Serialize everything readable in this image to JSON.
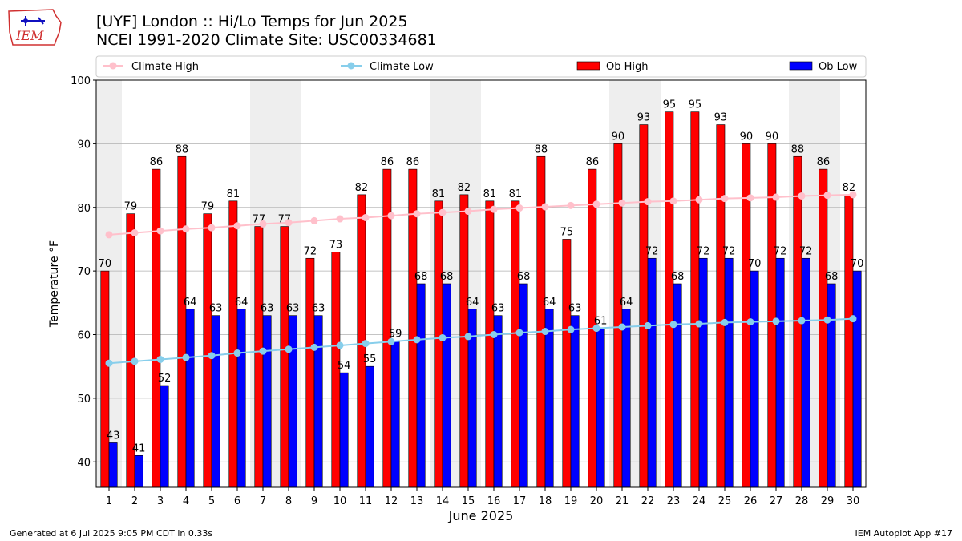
{
  "title_line1": "[UYF] London :: Hi/Lo Temps for Jun 2025",
  "title_line2": "NCEI 1991-2020 Climate Site: USC00334681",
  "logo_text": "IEM",
  "footer_left": "Generated at 6 Jul 2025 9:05 PM CDT in 0.33s",
  "footer_right": "IEM Autoplot App #17",
  "colors": {
    "ob_high": "#ff0000",
    "ob_low": "#0000ff",
    "climate_high": "#ffc0cb",
    "climate_low": "#87ceeb",
    "weekend_band": "#eeeeee",
    "grid": "#b0b0b0"
  },
  "chart_data": {
    "type": "bar",
    "xlabel": "June 2025",
    "ylabel": "Temperature °F",
    "ylim": [
      36,
      100
    ],
    "yticks": [
      40,
      50,
      60,
      70,
      80,
      90,
      100
    ],
    "grid": "horizontal",
    "legend_position": "top",
    "categories": [
      "1",
      "2",
      "3",
      "4",
      "5",
      "6",
      "7",
      "8",
      "9",
      "10",
      "11",
      "12",
      "13",
      "14",
      "15",
      "16",
      "17",
      "18",
      "19",
      "20",
      "21",
      "22",
      "23",
      "24",
      "25",
      "26",
      "27",
      "28",
      "29",
      "30"
    ],
    "weekend_days": [
      1,
      7,
      8,
      14,
      15,
      21,
      22,
      28,
      29
    ],
    "series": [
      {
        "name": "Ob High",
        "kind": "bar",
        "values": [
          70,
          79,
          86,
          88,
          79,
          81,
          77,
          77,
          72,
          73,
          82,
          86,
          86,
          81,
          82,
          81,
          81,
          88,
          75,
          86,
          90,
          93,
          95,
          95,
          93,
          90,
          90,
          88,
          86,
          82
        ]
      },
      {
        "name": "Ob Low",
        "kind": "bar",
        "values": [
          43,
          41,
          52,
          64,
          63,
          64,
          63,
          63,
          63,
          54,
          55,
          59,
          68,
          68,
          64,
          63,
          68,
          64,
          63,
          61,
          64,
          72,
          68,
          72,
          72,
          70,
          72,
          72,
          68,
          70
        ]
      },
      {
        "name": "Climate High",
        "kind": "line",
        "values": [
          75.7,
          76.0,
          76.3,
          76.6,
          76.8,
          77.1,
          77.4,
          77.6,
          77.9,
          78.2,
          78.4,
          78.7,
          79.0,
          79.2,
          79.4,
          79.7,
          79.9,
          80.1,
          80.3,
          80.5,
          80.7,
          80.9,
          81.0,
          81.2,
          81.4,
          81.5,
          81.6,
          81.8,
          81.9,
          82.0
        ]
      },
      {
        "name": "Climate Low",
        "kind": "line",
        "values": [
          55.5,
          55.8,
          56.1,
          56.4,
          56.7,
          57.1,
          57.4,
          57.7,
          58.0,
          58.3,
          58.6,
          58.9,
          59.2,
          59.5,
          59.7,
          60.0,
          60.3,
          60.5,
          60.8,
          61.0,
          61.2,
          61.4,
          61.6,
          61.7,
          61.9,
          62.0,
          62.1,
          62.2,
          62.3,
          62.5
        ]
      }
    ],
    "legend": [
      "Climate High",
      "Climate Low",
      "Ob High",
      "Ob Low"
    ]
  }
}
